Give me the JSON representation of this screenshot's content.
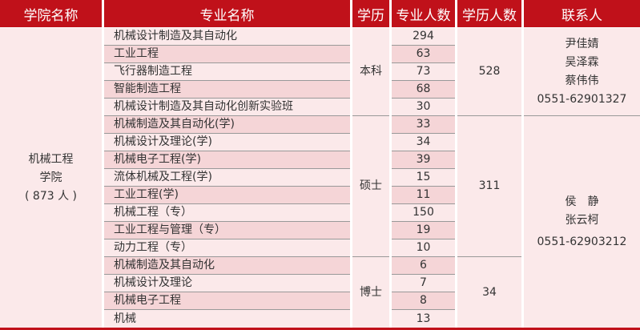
{
  "headers": [
    "学院名称",
    "专业名称",
    "学历",
    "专业人数",
    "学历人数",
    "联系人"
  ],
  "college": {
    "name": "机械工程",
    "name2": "学院",
    "total": "( 873 人 )"
  },
  "groups": [
    {
      "degree": "本科",
      "total": "528",
      "contacts": [
        "尹佳婧",
        "吴泽霖",
        "蔡伟伟",
        "0551-62901327"
      ],
      "majors": [
        [
          "机械设计制造及其自动化",
          "294"
        ],
        [
          "工业工程",
          "63"
        ],
        [
          "飞行器制造工程",
          "73"
        ],
        [
          "智能制造工程",
          "68"
        ],
        [
          "机械设计制造及其自动化创新实验班",
          "30"
        ]
      ]
    },
    {
      "degree": "硕士",
      "total": "311",
      "contacts": [
        "侯　静",
        "张云柯",
        "0551-62903212"
      ],
      "majors": [
        [
          "机械制造及其自动化(学)",
          "33"
        ],
        [
          "机械设计及理论(学)",
          "34"
        ],
        [
          "机械电子工程(学)",
          "39"
        ],
        [
          "流体机械及工程(学)",
          "15"
        ],
        [
          "工业工程(学)",
          "11"
        ],
        [
          "机械工程（专）",
          "150"
        ],
        [
          "工业工程与管理（专）",
          "19"
        ],
        [
          "动力工程（专）",
          "10"
        ]
      ]
    },
    {
      "degree": "博士",
      "total": "34",
      "contacts": [],
      "majors": [
        [
          "机械制造及其自动化",
          "6"
        ],
        [
          "机械设计及理论",
          "7"
        ],
        [
          "机械电子工程",
          "8"
        ],
        [
          "机械",
          "13"
        ]
      ]
    }
  ],
  "colors": {
    "header": "#c0111a",
    "row": "#fbe9ea",
    "row_alt": "#f5d5d7"
  }
}
